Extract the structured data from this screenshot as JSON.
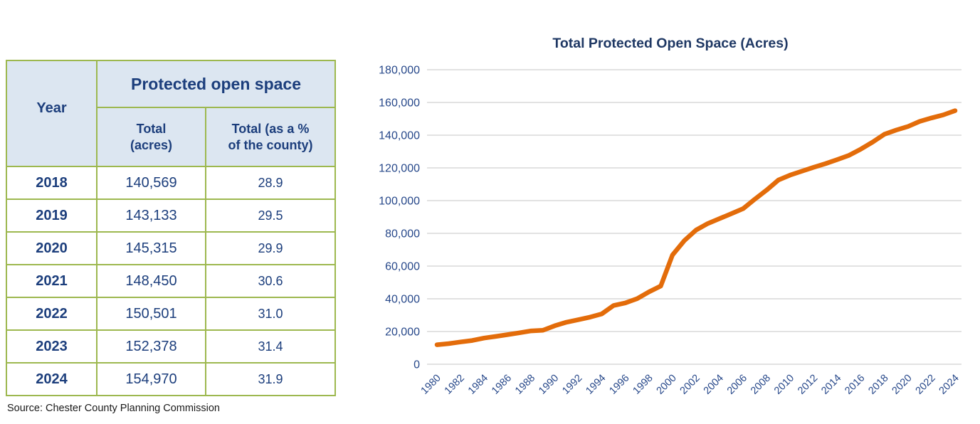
{
  "table": {
    "group_header": "Protected open space",
    "columns": [
      "Year",
      "Total\n(acres)",
      "Total (as a %\nof the county)"
    ],
    "rows": [
      {
        "year": "2018",
        "acres": "140,569",
        "pct": "28.9"
      },
      {
        "year": "2019",
        "acres": "143,133",
        "pct": "29.5"
      },
      {
        "year": "2020",
        "acres": "145,315",
        "pct": "29.9"
      },
      {
        "year": "2021",
        "acres": "148,450",
        "pct": "30.6"
      },
      {
        "year": "2022",
        "acres": "150,501",
        "pct": "31.0"
      },
      {
        "year": "2023",
        "acres": "152,378",
        "pct": "31.4"
      },
      {
        "year": "2024",
        "acres": "154,970",
        "pct": "31.9"
      }
    ]
  },
  "source": "Source: Chester County Planning Commission",
  "chart_data": {
    "type": "line",
    "title": "Total Protected Open Space (Acres)",
    "xlabel": "",
    "ylabel": "",
    "ylim": [
      0,
      180000
    ],
    "ytick_step": 20000,
    "xtick_step": 2,
    "grid": true,
    "legend": "none",
    "x": [
      1980,
      1981,
      1982,
      1983,
      1984,
      1985,
      1986,
      1987,
      1988,
      1989,
      1990,
      1991,
      1992,
      1993,
      1994,
      1995,
      1996,
      1997,
      1998,
      1999,
      2000,
      2001,
      2002,
      2003,
      2004,
      2005,
      2006,
      2007,
      2008,
      2009,
      2010,
      2011,
      2012,
      2013,
      2014,
      2015,
      2016,
      2017,
      2018,
      2019,
      2020,
      2021,
      2022,
      2023,
      2024
    ],
    "series": [
      {
        "name": "Total Protected Open Space (Acres)",
        "values": [
          11900,
          12600,
          13600,
          14500,
          16000,
          17000,
          18100,
          19200,
          20400,
          20800,
          23500,
          25700,
          27200,
          28800,
          30800,
          35900,
          37500,
          40100,
          44200,
          47800,
          66800,
          75500,
          82000,
          86000,
          89000,
          92000,
          95100,
          100900,
          106500,
          112600,
          115600,
          118000,
          120400,
          122600,
          125100,
          127700,
          131500,
          135800,
          140569,
          143133,
          145315,
          148450,
          150501,
          152378,
          154970
        ]
      }
    ]
  },
  "colors": {
    "title_text": "#1F3864",
    "table_text": "#1C3E7C",
    "table_border": "#9DB84F",
    "table_header_fill": "#DCE6F1",
    "axis_label": "#27488A",
    "gridline": "#D9D9D9",
    "line": "#E36C0A",
    "source_text": "#1A1A1A",
    "background": "#FFFFFF"
  }
}
